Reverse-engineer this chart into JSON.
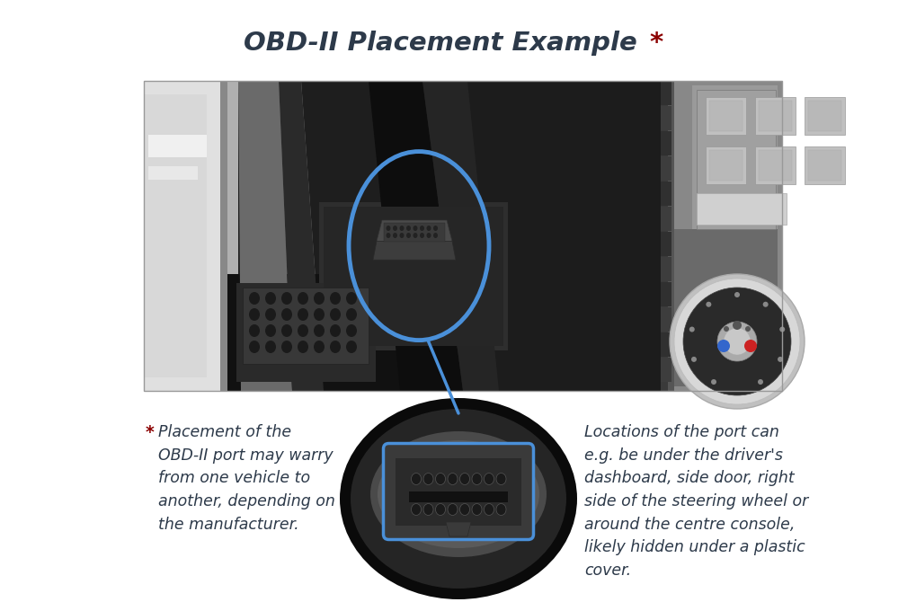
{
  "title": "OBD-II Placement Example",
  "title_star": "*",
  "title_color": "#2d3a4a",
  "title_star_color": "#8b0000",
  "title_fontsize": 21,
  "bg_color": "#ffffff",
  "circle_color": "#4a90d9",
  "line_color": "#4a90d9",
  "left_text_star": "*",
  "left_text_body": " Placement of the\nOBD-II port may warry\nfrom one vehicle to\nanother, depending on\nthe manufacturer.",
  "left_text_color": "#2d3a4a",
  "right_text": "Locations of the port can\ne.g. be under the driver's\ndashboard, side door, right\nside of the steering wheel or\naround the centre console,\nlikely hidden under a plastic\ncover.",
  "right_text_color": "#2d3a4a",
  "footnote_fontsize": 12.5
}
